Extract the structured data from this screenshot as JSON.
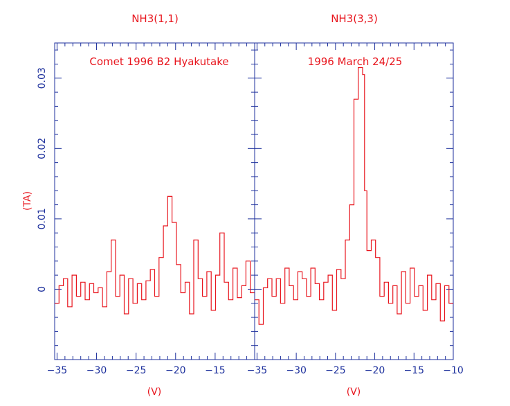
{
  "chart_data": [
    {
      "type": "line",
      "title": "NH3(1,1)",
      "annotation": "Comet 1996 B2 Hyakutake",
      "xlabel": "(V)",
      "ylabel": "(TA)",
      "xlim": [
        -35.3,
        -10
      ],
      "ylim": [
        -0.01,
        0.035
      ],
      "x_ticks": [
        -35,
        -30,
        -25,
        -20,
        -15
      ],
      "x_tick_labels": [
        "−35",
        "−30",
        "−25",
        "−20",
        "−15"
      ],
      "y_ticks": [
        0,
        0.01,
        0.02,
        0.03
      ],
      "y_tick_labels": [
        "0",
        "0.01",
        "0.02",
        "0.03"
      ],
      "series": [
        {
          "x": [
            -35.3,
            -34.75,
            -34.2,
            -33.65,
            -33.1,
            -32.55,
            -32.0,
            -31.45,
            -30.9,
            -30.35,
            -29.8,
            -29.25,
            -28.7,
            -28.15,
            -27.6,
            -27.05,
            -26.5,
            -25.95,
            -25.4,
            -24.85,
            -24.3,
            -23.75,
            -23.2,
            -22.65,
            -22.1,
            -21.55,
            -21.0,
            -20.45,
            -19.9,
            -19.35,
            -18.8,
            -18.25,
            -17.7,
            -17.15,
            -16.6,
            -16.05,
            -15.5,
            -14.95,
            -14.4,
            -13.85,
            -13.3,
            -12.75,
            -12.2,
            -11.65,
            -11.1,
            -10.55
          ],
          "y": [
            -0.002,
            0.0005,
            0.0015,
            -0.0025,
            0.002,
            -0.001,
            0.001,
            -0.0015,
            0.0008,
            -0.0005,
            0.0002,
            -0.0025,
            0.0025,
            0.007,
            -0.001,
            0.002,
            -0.0035,
            0.0015,
            -0.002,
            0.0008,
            -0.0015,
            0.0012,
            0.0028,
            -0.001,
            0.0045,
            0.009,
            0.0132,
            0.0095,
            0.0035,
            -0.0005,
            0.001,
            -0.0035,
            0.007,
            0.0015,
            -0.001,
            0.0025,
            -0.003,
            0.002,
            0.008,
            0.001,
            -0.0015,
            0.003,
            -0.0012,
            0.0005,
            0.004,
            -0.0005
          ]
        }
      ]
    },
    {
      "type": "line",
      "title": "NH3(3,3)",
      "annotation": "1996 March 24/25",
      "xlabel": "(V)",
      "ylabel": "",
      "xlim": [
        -35.3,
        -10
      ],
      "ylim": [
        -0.01,
        0.035
      ],
      "x_ticks": [
        -35,
        -30,
        -25,
        -20,
        -15,
        -10
      ],
      "x_tick_labels": [
        "−35",
        "−30",
        "−25",
        "−20",
        "−15",
        "−10"
      ],
      "y_ticks": [
        0,
        0.01,
        0.02,
        0.03
      ],
      "y_tick_labels": [
        "",
        "",
        "",
        ""
      ],
      "series": [
        {
          "x": [
            -35.3,
            -34.75,
            -34.2,
            -33.65,
            -33.1,
            -32.55,
            -32.0,
            -31.45,
            -30.9,
            -30.35,
            -29.8,
            -29.25,
            -28.7,
            -28.15,
            -27.6,
            -27.05,
            -26.5,
            -25.95,
            -25.4,
            -24.85,
            -24.3,
            -23.75,
            -23.2,
            -22.65,
            -22.1,
            -21.55,
            -21.3,
            -21.0,
            -20.45,
            -19.9,
            -19.35,
            -18.8,
            -18.25,
            -17.7,
            -17.15,
            -16.6,
            -16.05,
            -15.5,
            -14.95,
            -14.4,
            -13.85,
            -13.3,
            -12.75,
            -12.2,
            -11.65,
            -11.1,
            -10.55
          ],
          "y": [
            -0.0015,
            -0.005,
            0.0002,
            0.0015,
            -0.001,
            0.0015,
            -0.002,
            0.003,
            0.0005,
            -0.0015,
            0.0025,
            0.0015,
            -0.001,
            0.003,
            0.0008,
            -0.0015,
            0.001,
            0.002,
            -0.003,
            0.0028,
            0.0015,
            0.007,
            0.012,
            0.027,
            0.0315,
            0.0305,
            0.014,
            0.0055,
            0.007,
            0.0045,
            -0.001,
            0.001,
            -0.002,
            0.0005,
            -0.0035,
            0.0025,
            -0.002,
            0.003,
            -0.001,
            0.0005,
            -0.003,
            0.002,
            -0.0015,
            0.0008,
            -0.0045,
            0.0005,
            -0.002
          ]
        }
      ]
    }
  ]
}
